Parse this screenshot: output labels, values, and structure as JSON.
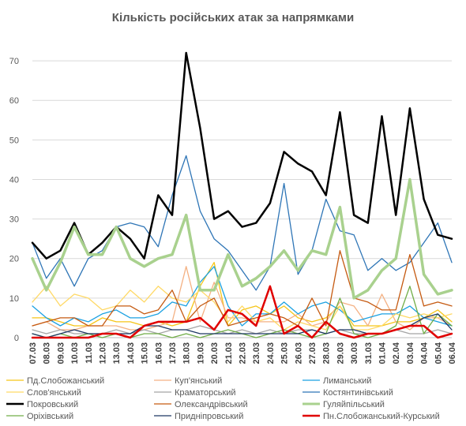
{
  "chart_data": {
    "type": "line",
    "title": "Кількість російських атак за напрямками",
    "ylim": [
      0,
      75
    ],
    "yticks": [
      0,
      10,
      20,
      30,
      40,
      50,
      60,
      70
    ],
    "grid": true,
    "legend_position": "bottom",
    "x": [
      "07.03",
      "08.03",
      "09.03",
      "10.03",
      "11.03",
      "12.03",
      "13.03",
      "14.03",
      "15.03",
      "16.03",
      "17.03",
      "18.03",
      "19.03",
      "20.03",
      "21.03",
      "22.03",
      "23.03",
      "24.03",
      "25.03",
      "26.03",
      "27.03",
      "28.03",
      "29.03",
      "30.03",
      "31.03",
      "01.04",
      "02.04",
      "03.04",
      "04.04",
      "05.04",
      "06.04"
    ],
    "series": [
      {
        "name": "Пд.Слобожанський",
        "color": "#F5C518",
        "width": 1.3,
        "values": [
          5,
          5,
          4,
          3,
          3,
          5,
          4,
          4,
          3,
          4,
          3,
          4,
          13,
          19,
          3,
          7,
          8,
          6,
          8,
          5,
          4,
          5,
          8,
          3,
          3,
          3,
          4,
          4,
          5,
          7,
          4
        ]
      },
      {
        "name": "Куп'янський",
        "color": "#F4B183",
        "width": 1.3,
        "values": [
          3,
          4,
          2,
          2,
          3,
          3,
          3,
          2,
          2,
          3,
          4,
          18,
          4,
          14,
          5,
          5,
          4,
          4,
          4,
          6,
          3,
          4,
          9,
          8,
          3,
          11,
          4,
          2,
          5,
          5,
          3
        ]
      },
      {
        "name": "Лиманський",
        "color": "#1BA1E2",
        "width": 1.3,
        "values": [
          8,
          5,
          3,
          5,
          4,
          6,
          7,
          5,
          5,
          6,
          9,
          8,
          14,
          18,
          8,
          3,
          6,
          6,
          9,
          6,
          8,
          9,
          7,
          4,
          5,
          6,
          6,
          8,
          5,
          4,
          3
        ]
      },
      {
        "name": "Слов'янський",
        "color": "#FFD966",
        "width": 1.3,
        "values": [
          9,
          13,
          8,
          11,
          10,
          7,
          8,
          12,
          9,
          13,
          10,
          9,
          12,
          9,
          4,
          8,
          4,
          5,
          2,
          4,
          3,
          2,
          8,
          2,
          2,
          3,
          6,
          5,
          6,
          5,
          6
        ]
      },
      {
        "name": "Краматорський",
        "color": "#A5A5A5",
        "width": 1.3,
        "values": [
          2,
          1,
          2,
          1,
          1,
          1,
          2,
          1,
          2,
          1,
          2,
          2,
          3,
          2,
          1,
          2,
          1,
          2,
          1,
          2,
          2,
          1,
          2,
          1,
          1,
          1,
          2,
          1,
          1,
          2,
          1
        ]
      },
      {
        "name": "Костянтинівський",
        "color": "#2E75B6",
        "width": 1.3,
        "values": [
          24,
          15,
          20,
          13,
          20,
          22,
          28,
          29,
          28,
          23,
          36,
          46,
          32,
          25,
          22,
          17,
          12,
          18,
          39,
          16,
          22,
          35,
          27,
          26,
          17,
          20,
          17,
          19,
          24,
          29,
          19
        ]
      },
      {
        "name": "Покровський",
        "color": "#000000",
        "width": 2.5,
        "values": [
          24,
          20,
          22,
          29,
          21,
          24,
          28,
          25,
          20,
          36,
          31,
          72,
          53,
          30,
          32,
          28,
          29,
          34,
          47,
          44,
          42,
          36,
          57,
          31,
          29,
          56,
          31,
          58,
          35,
          26,
          25
        ]
      },
      {
        "name": "Олександрівський",
        "color": "#C55A11",
        "width": 1.3,
        "values": [
          3,
          4,
          5,
          5,
          3,
          3,
          8,
          8,
          6,
          7,
          12,
          4,
          8,
          10,
          3,
          4,
          5,
          6,
          5,
          3,
          10,
          3,
          22,
          10,
          9,
          7,
          7,
          21,
          8,
          9,
          8
        ]
      },
      {
        "name": "Гуляйпільський",
        "color": "#A9D18E",
        "width": 3.5,
        "values": [
          20,
          12,
          19,
          28,
          21,
          21,
          28,
          20,
          18,
          20,
          21,
          31,
          12,
          12,
          21,
          13,
          15,
          18,
          22,
          17,
          22,
          21,
          33,
          10,
          12,
          17,
          20,
          40,
          16,
          11,
          12
        ]
      },
      {
        "name": "Оріхівський",
        "color": "#70AD47",
        "width": 1.3,
        "values": [
          1,
          0,
          1,
          0,
          1,
          0,
          1,
          0,
          1,
          1,
          0,
          1,
          0,
          1,
          2,
          1,
          0,
          1,
          2,
          1,
          0,
          1,
          10,
          1,
          0,
          1,
          3,
          13,
          1,
          6,
          3
        ]
      },
      {
        "name": "Придніпровський",
        "color": "#1F3864",
        "width": 1.3,
        "values": [
          1,
          0,
          1,
          2,
          1,
          1,
          1,
          1,
          3,
          3,
          2,
          2,
          1,
          1,
          1,
          1,
          1,
          1,
          1,
          1,
          2,
          1,
          2,
          2,
          1,
          1,
          2,
          3,
          5,
          6,
          2
        ]
      },
      {
        "name": "Пн.Слобожанський-Курський",
        "color": "#E00000",
        "width": 2.5,
        "values": [
          0,
          0,
          0,
          0,
          0,
          1,
          1,
          0,
          3,
          4,
          4,
          4,
          5,
          2,
          7,
          6,
          3,
          13,
          1,
          3,
          0,
          4,
          1,
          0,
          1,
          1,
          2,
          3,
          3,
          0,
          1
        ]
      }
    ]
  }
}
